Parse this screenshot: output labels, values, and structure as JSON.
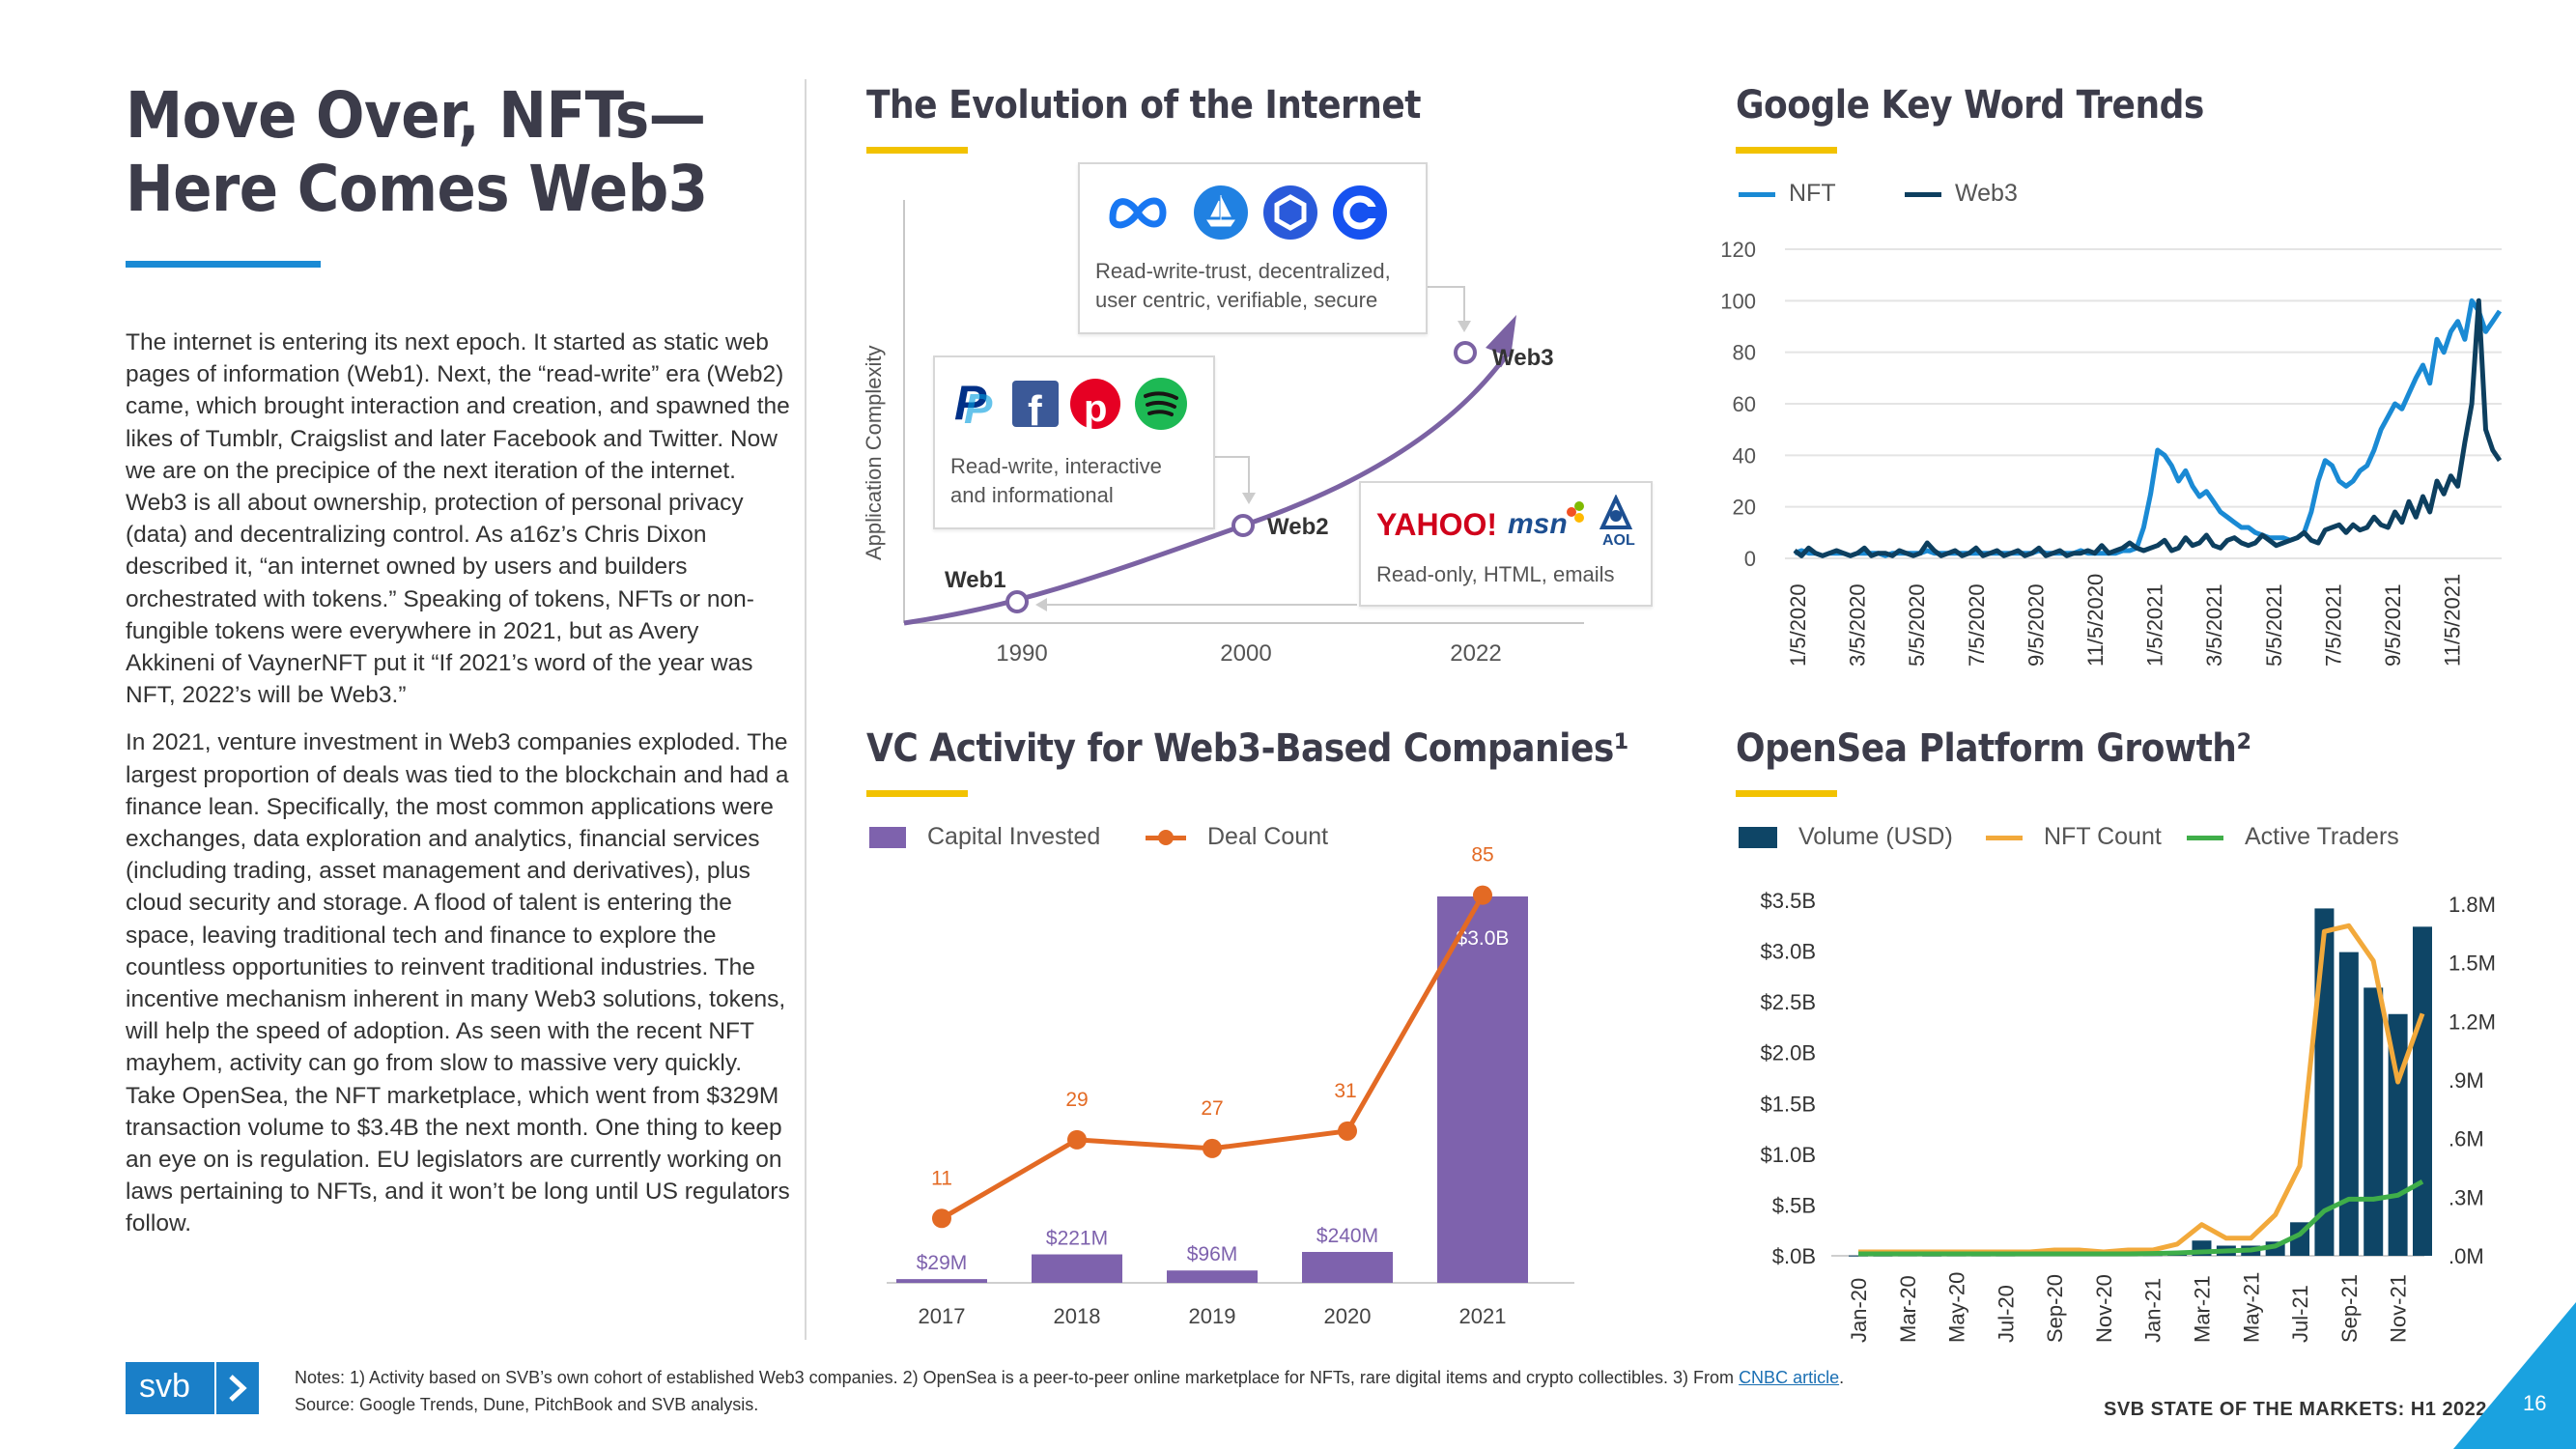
{
  "page": {
    "title_line1": "Move Over, NFTs—",
    "title_line2": "Here Comes Web3",
    "body_paragraph_1": "The internet is entering its next epoch. It started as static web pages of information (Web1). Next, the “read-write” era (Web2) came, which brought interaction and creation, and spawned the likes of Tumblr, Craigslist and later Facebook and Twitter. Now we are on the precipice of the next iteration of the internet. Web3 is all about ownership, protection of personal privacy (data) and decentralizing control. As a16z’s Chris Dixon described it, “an internet owned by users and builders orchestrated with tokens.” Speaking of tokens, NFTs or non-fungible tokens were everywhere in 2021, but as Avery Akkineni of VaynerNFT put it “If 2021’s word of the year was NFT, 2022’s will be Web3.”",
    "body_paragraph_2": "In 2021, venture investment in Web3 companies exploded. The largest proportion of deals was tied to the blockchain and had a finance lean. Specifically, the most common applications were exchanges, data exploration and analytics, financial services (including trading, asset management and derivatives), plus cloud security and storage. A flood of talent is entering the space, leaving traditional tech and finance to explore the countless opportunities to reinvent traditional industries. The incentive mechanism inherent in many Web3 solutions, tokens, will help the speed of adoption. As seen with the recent NFT mayhem, activity can go from slow to massive very quickly. Take OpenSea, the NFT marketplace, which went from $329M transaction volume to $3.4B the next month. One thing to keep an eye on is regulation. EU legislators are currently working on laws pertaining to NFTs, and it won’t be long until US regulators follow."
  },
  "footer": {
    "logo_text": "svb",
    "notes": "Notes: 1) Activity based on SVB’s own cohort of established Web3 companies. 2) OpenSea is a peer-to-peer online marketplace for NFTs, rare digital items and crypto collectibles. 3) From",
    "notes_link": "CNBC article",
    "notes_end": ".",
    "source": "Source: Google Trends, Dune, PitchBook and SVB analysis.",
    "report_name": "SVB STATE OF THE MARKETS: H1 2022",
    "page_number": "16"
  },
  "evolution": {
    "title": "The Evolution of the Internet",
    "ylabel": "Application Complexity",
    "stages": [
      {
        "label": "Web1",
        "year": "1990",
        "description": "Read-only, HTML, emails",
        "brands": [
          "YAHOO!",
          "msn",
          "AOL"
        ]
      },
      {
        "label": "Web2",
        "year": "2000",
        "description": "Read-write, interactive and informational",
        "brands": [
          "PayPal",
          "Facebook",
          "Pinterest",
          "Spotify"
        ]
      },
      {
        "label": "Web3",
        "year": "2022",
        "description": "Read-write-trust, decentralized, user centric, verifiable, secure",
        "brands": [
          "Meta",
          "OpenSea",
          "Chainlink",
          "Coinbase"
        ]
      }
    ],
    "card_web2_line1": "Read-write, interactive",
    "card_web2_line2": "and informational",
    "card_web3_line1": "Read-write-trust, decentralized,",
    "card_web3_line2": "user centric, verifiable, secure",
    "card_web1_line1": "Read-only, HTML, emails"
  },
  "colors": {
    "web1_purple": "#7b62a3",
    "nft_blue": "#1a8ad4",
    "web3_navy": "#0d3f5f",
    "deal_orange": "#e36a24",
    "bar_purple": "#7e62ad",
    "nft_count_yellow": "#f2a93b",
    "traders_green": "#3fae49",
    "volume_navy": "#0e4566",
    "accent_yellow": "#f2c200",
    "title_gray": "#3c3c4a"
  },
  "chart_data": [
    {
      "id": "google-trends",
      "type": "line",
      "title": "Google Key Word Trends",
      "xlabel": "",
      "ylabel": "",
      "ylim": [
        0,
        120
      ],
      "yticks": [
        "0",
        "20",
        "40",
        "60",
        "80",
        "100",
        "120"
      ],
      "x_tick_labels": [
        "1/5/2020",
        "3/5/2020",
        "5/5/2020",
        "7/5/2020",
        "9/5/2020",
        "11/5/2020",
        "1/5/2021",
        "3/5/2021",
        "5/5/2021",
        "7/5/2021",
        "9/5/2021",
        "11/5/2021"
      ],
      "legend": [
        "NFT",
        "Web3"
      ],
      "series": [
        {
          "name": "NFT",
          "values": [
            2,
            3,
            2,
            2,
            1,
            2,
            2,
            2,
            1,
            2,
            2,
            2,
            2,
            1,
            2,
            2,
            2,
            2,
            2,
            3,
            2,
            2,
            2,
            2,
            2,
            2,
            2,
            2,
            2,
            2,
            2,
            2,
            2,
            2,
            2,
            3,
            2,
            2,
            2,
            2,
            2,
            3,
            2,
            2,
            2,
            2,
            2,
            3,
            3,
            4,
            12,
            25,
            42,
            40,
            36,
            30,
            34,
            28,
            24,
            26,
            22,
            18,
            16,
            14,
            12,
            12,
            10,
            9,
            8,
            8,
            8,
            7,
            8,
            10,
            18,
            30,
            38,
            36,
            30,
            28,
            30,
            34,
            36,
            42,
            50,
            55,
            60,
            58,
            64,
            70,
            75,
            68,
            85,
            80,
            88,
            92,
            85,
            100,
            96,
            88,
            92,
            96
          ]
        },
        {
          "name": "Web3",
          "values": [
            3,
            1,
            4,
            2,
            1,
            2,
            3,
            2,
            1,
            2,
            4,
            1,
            2,
            2,
            1,
            3,
            2,
            1,
            2,
            6,
            3,
            1,
            2,
            3,
            1,
            2,
            4,
            1,
            2,
            3,
            1,
            2,
            3,
            1,
            2,
            4,
            1,
            2,
            3,
            1,
            2,
            2,
            3,
            2,
            5,
            2,
            3,
            4,
            6,
            4,
            3,
            4,
            5,
            7,
            3,
            4,
            8,
            5,
            6,
            9,
            5,
            4,
            7,
            8,
            6,
            5,
            6,
            9,
            7,
            5,
            6,
            7,
            8,
            10,
            7,
            6,
            11,
            12,
            13,
            10,
            13,
            11,
            12,
            16,
            13,
            12,
            18,
            14,
            22,
            16,
            24,
            18,
            30,
            25,
            32,
            28,
            45,
            60,
            100,
            50,
            42,
            38
          ]
        }
      ]
    },
    {
      "id": "vc-activity",
      "type": "bar",
      "title": "VC Activity for Web3-Based Companies¹",
      "categories": [
        "2017",
        "2018",
        "2019",
        "2020",
        "2021"
      ],
      "series": [
        {
          "name": "Capital Invested",
          "values": [
            0.029,
            0.221,
            0.096,
            0.24,
            3.0
          ],
          "labels": [
            "$29M",
            "$221M",
            "$96M",
            "$240M",
            "$3.0B"
          ],
          "unit": "$B"
        },
        {
          "name": "Deal Count",
          "values": [
            11,
            29,
            27,
            31,
            85
          ],
          "labels": [
            "11",
            "29",
            "27",
            "31",
            "85"
          ]
        }
      ],
      "ylim_capital": [
        0,
        3.6
      ],
      "ylim_deals": [
        0,
        92
      ]
    },
    {
      "id": "opensea-growth",
      "type": "bar",
      "title": "OpenSea Platform Growth²",
      "categories": [
        "Jan-20",
        "Feb-20",
        "Mar-20",
        "Apr-20",
        "May-20",
        "Jun-20",
        "Jul-20",
        "Aug-20",
        "Sep-20",
        "Oct-20",
        "Nov-20",
        "Dec-20",
        "Jan-21",
        "Feb-21",
        "Mar-21",
        "Apr-21",
        "May-21",
        "Jun-21",
        "Jul-21",
        "Aug-21",
        "Sep-21",
        "Oct-21",
        "Nov-21",
        "Dec-21"
      ],
      "x_tick_labels": [
        "Jan-20",
        "Mar-20",
        "May-20",
        "Jul-20",
        "Sep-20",
        "Nov-20",
        "Jan-21",
        "Mar-21",
        "May-21",
        "Jul-21",
        "Sep-21",
        "Nov-21"
      ],
      "y_left_ticks": [
        "$.0B",
        "$.5B",
        "$1.0B",
        "$1.5B",
        "$2.0B",
        "$2.5B",
        "$3.0B",
        "$3.5B"
      ],
      "y_right_ticks": [
        ".0M",
        ".3M",
        ".6M",
        ".9M",
        "1.2M",
        "1.5M",
        "1.8M"
      ],
      "ylim_left": [
        0,
        3.5
      ],
      "ylim_right": [
        0,
        1.8
      ],
      "series": [
        {
          "name": "Volume (USD)",
          "axis": "left",
          "unit": "$B",
          "values": [
            0.003,
            0.003,
            0.004,
            0.003,
            0.004,
            0.004,
            0.004,
            0.005,
            0.006,
            0.005,
            0.006,
            0.008,
            0.008,
            0.01,
            0.15,
            0.1,
            0.1,
            0.14,
            0.33,
            3.42,
            2.99,
            2.64,
            2.38,
            3.24
          ]
        },
        {
          "name": "NFT Count",
          "axis": "right",
          "unit": "M",
          "values": [
            0.01,
            0.01,
            0.01,
            0.01,
            0.01,
            0.01,
            0.01,
            0.01,
            0.02,
            0.02,
            0.01,
            0.02,
            0.02,
            0.05,
            0.15,
            0.08,
            0.08,
            0.2,
            0.45,
            1.65,
            1.68,
            1.5,
            0.88,
            1.23
          ]
        },
        {
          "name": "Active Traders",
          "axis": "right",
          "unit": "M",
          "values": [
            0.0,
            0.0,
            0.0,
            0.0,
            0.0,
            0.0,
            0.0,
            0.0,
            0.0,
            0.0,
            0.0,
            0.0,
            0.002,
            0.005,
            0.01,
            0.015,
            0.02,
            0.04,
            0.1,
            0.22,
            0.28,
            0.28,
            0.3,
            0.37
          ]
        }
      ]
    }
  ]
}
